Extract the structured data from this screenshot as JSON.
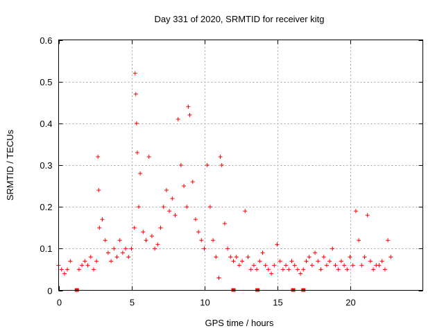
{
  "chart_data": {
    "type": "scatter",
    "title": "Day 331 of 2020, SRMTID for receiver kitg",
    "xlabel": "GPS time / hours",
    "ylabel": "SRMTID / TECUs",
    "xlim": [
      0,
      25
    ],
    "ylim": [
      0,
      0.6
    ],
    "xticks": [
      0,
      5,
      10,
      15,
      20
    ],
    "xtick_labels": [
      "0",
      "5",
      "10",
      "15",
      "20"
    ],
    "yticks": [
      0,
      0.1,
      0.2,
      0.3,
      0.4,
      0.5,
      0.6
    ],
    "ytick_labels": [
      "0",
      "0.1",
      "0.2",
      "0.3",
      "0.4",
      "0.5",
      "0.6"
    ],
    "grid": true,
    "marker": "+",
    "color": "#ff0000",
    "series": [
      {
        "name": "SRMTID",
        "x": [
          0.0,
          0.2,
          0.4,
          0.6,
          0.8,
          1.4,
          1.6,
          1.8,
          2.0,
          2.2,
          2.4,
          2.6,
          2.7,
          2.75,
          2.8,
          3.0,
          3.2,
          3.4,
          3.6,
          3.8,
          4.0,
          4.2,
          4.4,
          4.6,
          4.8,
          5.0,
          5.2,
          5.25,
          5.3,
          5.35,
          5.4,
          5.5,
          5.6,
          5.8,
          6.0,
          6.2,
          6.4,
          6.6,
          6.8,
          7.0,
          7.2,
          7.4,
          7.6,
          7.8,
          8.0,
          8.2,
          8.4,
          8.6,
          8.8,
          8.9,
          9.0,
          9.2,
          9.4,
          9.6,
          9.8,
          10.0,
          10.2,
          10.4,
          10.6,
          10.8,
          11.0,
          11.1,
          11.2,
          11.4,
          11.6,
          11.8,
          12.0,
          12.2,
          12.4,
          12.6,
          12.8,
          13.0,
          13.2,
          13.4,
          13.6,
          13.8,
          14.0,
          14.2,
          14.4,
          14.6,
          14.8,
          15.0,
          15.2,
          15.4,
          15.6,
          15.8,
          16.0,
          16.2,
          16.4,
          16.6,
          16.8,
          17.0,
          17.2,
          17.4,
          17.6,
          17.8,
          18.0,
          18.2,
          18.4,
          18.6,
          18.8,
          19.0,
          19.2,
          19.4,
          19.6,
          19.8,
          20.0,
          20.2,
          20.4,
          20.6,
          20.8,
          21.0,
          21.2,
          21.4,
          21.6,
          21.8,
          22.0,
          22.2,
          22.4,
          22.6,
          22.8
        ],
        "y": [
          0.06,
          0.05,
          0.04,
          0.05,
          0.07,
          0.05,
          0.06,
          0.07,
          0.06,
          0.08,
          0.05,
          0.07,
          0.32,
          0.24,
          0.15,
          0.17,
          0.12,
          0.09,
          0.07,
          0.1,
          0.08,
          0.12,
          0.09,
          0.1,
          0.08,
          0.1,
          0.15,
          0.52,
          0.47,
          0.4,
          0.33,
          0.2,
          0.28,
          0.14,
          0.12,
          0.32,
          0.13,
          0.1,
          0.11,
          0.15,
          0.2,
          0.24,
          0.19,
          0.22,
          0.18,
          0.41,
          0.3,
          0.25,
          0.2,
          0.44,
          0.42,
          0.26,
          0.17,
          0.14,
          0.12,
          0.1,
          0.3,
          0.2,
          0.12,
          0.08,
          0.03,
          0.32,
          0.3,
          0.16,
          0.1,
          0.08,
          0.07,
          0.08,
          0.06,
          0.07,
          0.19,
          0.08,
          0.05,
          0.06,
          0.05,
          0.07,
          0.09,
          0.06,
          0.05,
          0.04,
          0.06,
          0.11,
          0.07,
          0.05,
          0.06,
          0.05,
          0.07,
          0.06,
          0.05,
          0.04,
          0.05,
          0.07,
          0.08,
          0.06,
          0.09,
          0.07,
          0.05,
          0.08,
          0.06,
          0.07,
          0.1,
          0.06,
          0.05,
          0.07,
          0.06,
          0.05,
          0.08,
          0.06,
          0.19,
          0.12,
          0.06,
          0.08,
          0.18,
          0.07,
          0.05,
          0.06,
          0.06,
          0.07,
          0.05,
          0.12,
          0.08
        ],
        "gaps_x": [
          1.25,
          12.0,
          13.65,
          16.1,
          16.8
        ]
      }
    ]
  }
}
